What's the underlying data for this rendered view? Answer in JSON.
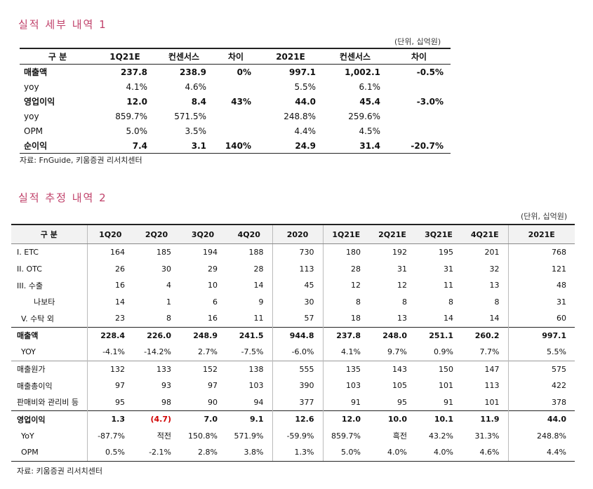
{
  "section1": {
    "title": "실적 세부 내역 1",
    "unit": "(단위, 십억원)",
    "headers": [
      "구 분",
      "1Q21E",
      "컨센서스",
      "차이",
      "2021E",
      "컨센서스",
      "차이"
    ],
    "rows": [
      {
        "label": "매출액",
        "bold": true,
        "cells": [
          "237.8",
          "238.9",
          "0%",
          "997.1",
          "1,002.1",
          "-0.5%"
        ]
      },
      {
        "label": "yoy",
        "bold": false,
        "cells": [
          "4.1%",
          "4.6%",
          "",
          "5.5%",
          "6.1%",
          ""
        ]
      },
      {
        "label": "영업이익",
        "bold": true,
        "cells": [
          "12.0",
          "8.4",
          "43%",
          "44.0",
          "45.4",
          "-3.0%"
        ]
      },
      {
        "label": "yoy",
        "bold": false,
        "cells": [
          "859.7%",
          "571.5%",
          "",
          "248.8%",
          "259.6%",
          ""
        ]
      },
      {
        "label": "OPM",
        "bold": false,
        "cells": [
          "5.0%",
          "3.5%",
          "",
          "4.4%",
          "4.5%",
          ""
        ]
      },
      {
        "label": "순이익",
        "bold": true,
        "cells": [
          "7.4",
          "3.1",
          "140%",
          "24.9",
          "31.4",
          "-20.7%"
        ]
      }
    ],
    "source": "자료: FnGuide, 키움증권 리서치센터"
  },
  "section2": {
    "title": "실적 추정 내역 2",
    "unit": "(단위, 십억원)",
    "headers": [
      "구 분",
      "1Q20",
      "2Q20",
      "3Q20",
      "4Q20",
      "2020",
      "1Q21E",
      "2Q21E",
      "3Q21E",
      "4Q21E",
      "2021E"
    ],
    "rows": [
      {
        "label": "I. ETC",
        "cells": [
          "164",
          "185",
          "194",
          "188",
          "730",
          "180",
          "192",
          "195",
          "201",
          "768"
        ]
      },
      {
        "label": "II. OTC",
        "cells": [
          "26",
          "30",
          "29",
          "28",
          "113",
          "28",
          "31",
          "31",
          "32",
          "121"
        ]
      },
      {
        "label": "III. 수출",
        "cells": [
          "16",
          "4",
          "10",
          "14",
          "45",
          "12",
          "12",
          "11",
          "13",
          "48"
        ]
      },
      {
        "label": "나보타",
        "indent": "ind",
        "cells": [
          "14",
          "1",
          "6",
          "9",
          "30",
          "8",
          "8",
          "8",
          "8",
          "31"
        ]
      },
      {
        "label": "V. 수탁 외",
        "indent": "ind2",
        "cells": [
          "23",
          "8",
          "16",
          "11",
          "57",
          "18",
          "13",
          "14",
          "14",
          "60"
        ]
      },
      {
        "label": "매출액",
        "bold": true,
        "group": "gtop",
        "cells": [
          "228.4",
          "226.0",
          "248.9",
          "241.5",
          "944.8",
          "237.8",
          "248.0",
          "251.1",
          "260.2",
          "997.1"
        ]
      },
      {
        "label": "YOY",
        "indent": "ind2",
        "cells": [
          "-4.1%",
          "-14.2%",
          "2.7%",
          "-7.5%",
          "-6.0%",
          "4.1%",
          "9.7%",
          "0.9%",
          "7.7%",
          "5.5%"
        ]
      },
      {
        "label": "매출원가",
        "group": "gtopl",
        "cells": [
          "132",
          "133",
          "152",
          "138",
          "555",
          "135",
          "143",
          "150",
          "147",
          "575"
        ]
      },
      {
        "label": "매출총이익",
        "cells": [
          "97",
          "93",
          "97",
          "103",
          "390",
          "103",
          "105",
          "101",
          "113",
          "422"
        ]
      },
      {
        "label": "판매비와 관리비 등",
        "cells": [
          "95",
          "98",
          "90",
          "94",
          "377",
          "91",
          "95",
          "91",
          "101",
          "378"
        ]
      },
      {
        "label": "영업이익",
        "bold": true,
        "group": "gtop",
        "cells": [
          "1.3",
          "(4.7)",
          "7.0",
          "9.1",
          "12.6",
          "12.0",
          "10.0",
          "10.1",
          "11.9",
          "44.0"
        ]
      },
      {
        "label": "YoY",
        "indent": "ind2",
        "cells": [
          "-87.7%",
          "적전",
          "150.8%",
          "571.9%",
          "-59.9%",
          "859.7%",
          "흑전",
          "43.2%",
          "31.3%",
          "248.8%"
        ]
      },
      {
        "label": "OPM",
        "indent": "ind2",
        "cells": [
          "0.5%",
          "-2.1%",
          "2.8%",
          "3.8%",
          "1.3%",
          "5.0%",
          "4.0%",
          "4.0%",
          "4.6%",
          "4.4%"
        ]
      }
    ],
    "source": "자료: 키움증권 리서치센터",
    "negative_color": "#d00000"
  }
}
